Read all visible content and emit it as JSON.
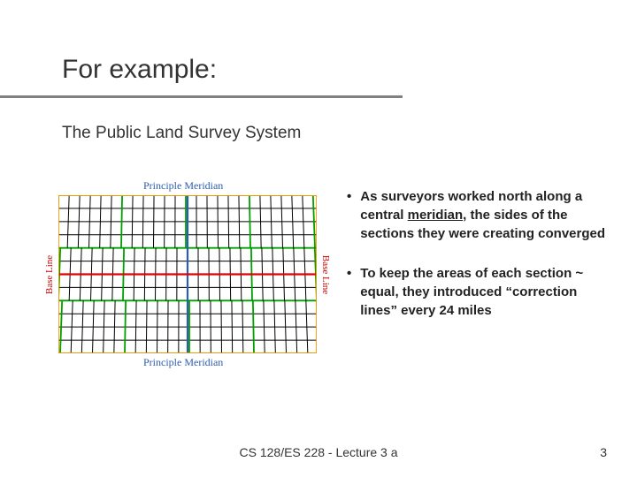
{
  "title": "For example:",
  "subtitle": "The Public Land Survey System",
  "diagram": {
    "label_top": "Principle Meridian",
    "label_bottom": "Principle Meridian",
    "label_left": "Base Line",
    "label_right": "Base Line",
    "colors": {
      "black": "#000000",
      "green": "#00a000",
      "blue": "#2e5db0",
      "red": "#e00000",
      "orange": "#ff9900"
    },
    "strokes": {
      "thin": 1,
      "med": 1.8,
      "thick": 2.2
    }
  },
  "bullets": [
    {
      "parts": [
        {
          "t": "As surveyors worked north along a central ",
          "u": false
        },
        {
          "t": "meridian",
          "u": true
        },
        {
          "t": ", the sides of the sections they were creating converged",
          "u": false
        }
      ]
    },
    {
      "parts": [
        {
          "t": "To keep the areas of each section ~ equal, they introduced “correction lines” every 24 miles",
          "u": false
        }
      ]
    }
  ],
  "footer": "CS 128/ES 228 - Lecture 3 a",
  "pagenum": "3",
  "styling": {
    "page_bg": "#ffffff",
    "title_color": "#333333",
    "title_fontsize": 30,
    "underline_color": "#808080",
    "subtitle_fontsize": 19,
    "bullet_fontsize": 15,
    "footer_fontsize": 14
  }
}
